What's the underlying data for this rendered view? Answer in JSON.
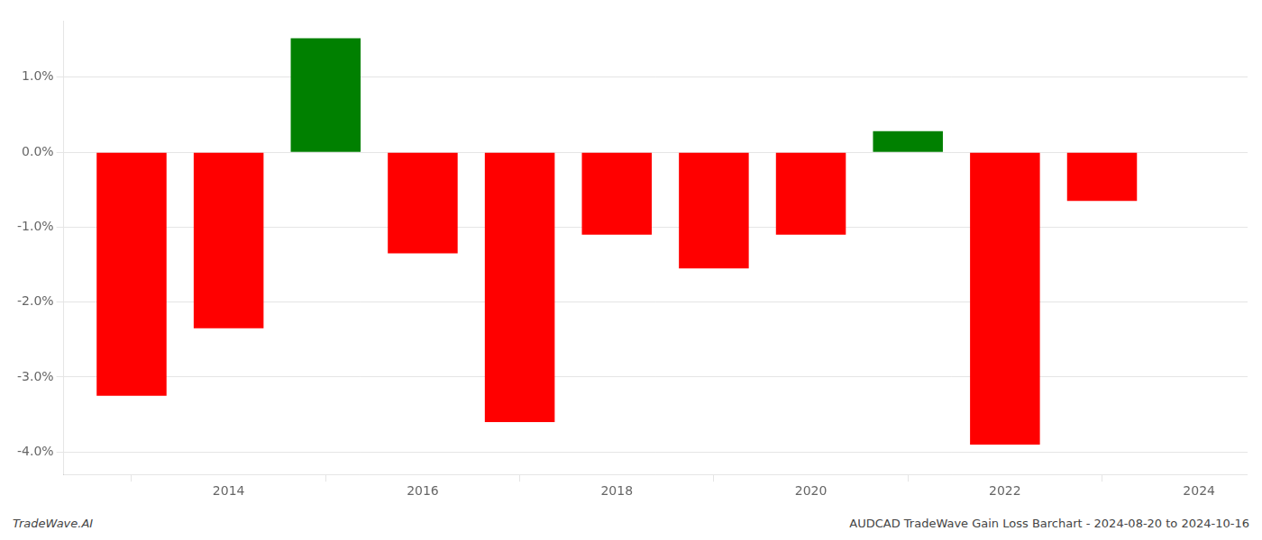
{
  "chart_data": {
    "type": "bar",
    "x": [
      2013,
      2014,
      2015,
      2016,
      2017,
      2018,
      2019,
      2020,
      2021,
      2022,
      2023
    ],
    "values": [
      -3.25,
      -2.35,
      1.52,
      -1.35,
      -3.6,
      -1.1,
      -1.55,
      -1.1,
      0.28,
      -3.9,
      -0.65
    ],
    "colors": [
      "red",
      "red",
      "green",
      "red",
      "red",
      "red",
      "red",
      "red",
      "green",
      "red",
      "red"
    ],
    "xlim": [
      2012.3,
      2024.5
    ],
    "xticks": [
      2014,
      2016,
      2018,
      2020,
      2022,
      2024
    ],
    "ylim": [
      -4.3,
      1.75
    ],
    "yticks": [
      {
        "value": -4.0,
        "label": "-4.0%"
      },
      {
        "value": -3.0,
        "label": "-3.0%"
      },
      {
        "value": -2.0,
        "label": "-2.0%"
      },
      {
        "value": -1.0,
        "label": "-1.0%"
      },
      {
        "value": 0.0,
        "label": "0.0%"
      },
      {
        "value": 1.0,
        "label": "1.0%"
      }
    ],
    "grid": true,
    "annotations": [
      "TradeWave.AI",
      "AUDCAD TradeWave Gain Loss Barchart - 2024-08-20 to 2024-10-16"
    ]
  }
}
